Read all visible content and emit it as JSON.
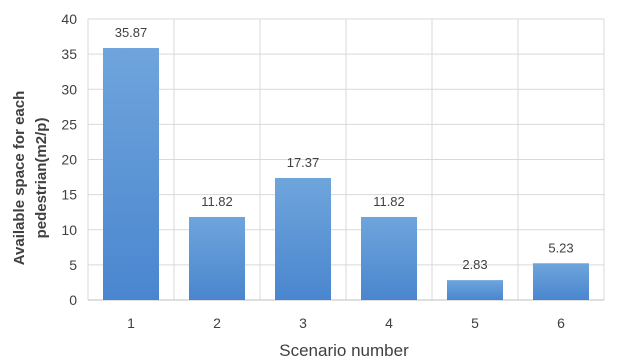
{
  "chart_data": {
    "type": "bar",
    "categories": [
      "1",
      "2",
      "3",
      "4",
      "5",
      "6"
    ],
    "values": [
      35.87,
      11.82,
      17.37,
      11.82,
      2.83,
      5.23
    ],
    "data_labels": [
      "35.87",
      "11.82",
      "17.37",
      "11.82",
      "2.83",
      "5.23"
    ],
    "xlabel": "Scenario number",
    "ylabel_lines": [
      "Available space for each",
      "pedestrian(m2/p)"
    ],
    "ylim": [
      0,
      40
    ],
    "yticks": [
      0,
      5,
      10,
      15,
      20,
      25,
      30,
      35,
      40
    ],
    "grid": true,
    "legend": "none",
    "colors": {
      "bar_top": "#6fa5dc",
      "bar_bottom": "#4a86cf",
      "grid": "#d9d9d9",
      "axis": "#bfbfbf"
    }
  }
}
